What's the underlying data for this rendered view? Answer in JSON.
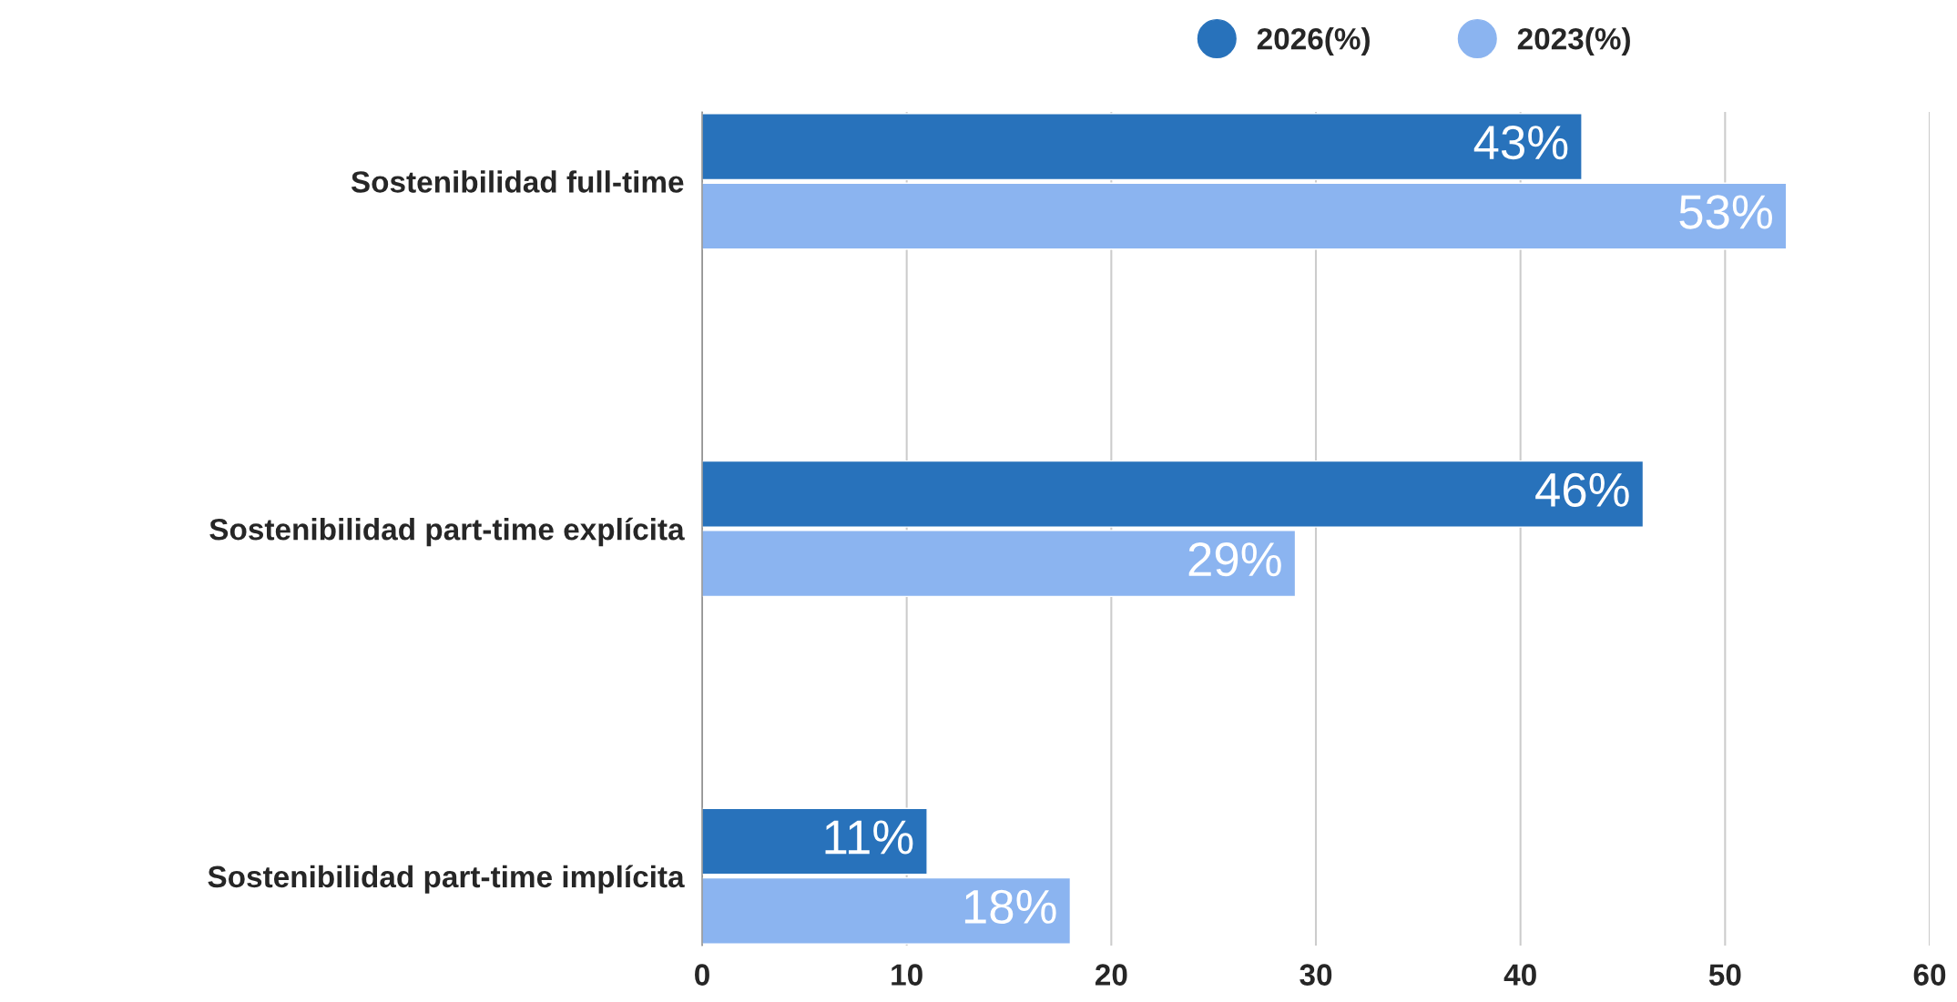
{
  "chart_data": {
    "type": "bar",
    "orientation": "horizontal",
    "categories": [
      "Sostenibilidad full-time",
      "Sostenibilidad part-time explícita",
      "Sostenibilidad part-time implícita"
    ],
    "series": [
      {
        "name": "2026(%)",
        "color": "#2872bb",
        "values": [
          43,
          46,
          11
        ],
        "value_labels": [
          "43%",
          "46%",
          "11%"
        ]
      },
      {
        "name": "2023(%)",
        "color": "#8bb4f0",
        "values": [
          53,
          29,
          18
        ],
        "value_labels": [
          "53%",
          "29%",
          "18%"
        ]
      }
    ],
    "xlim": [
      0,
      60
    ],
    "xticks": [
      0,
      10,
      20,
      30,
      40,
      50,
      60
    ],
    "grid": "x",
    "legend": "top"
  }
}
